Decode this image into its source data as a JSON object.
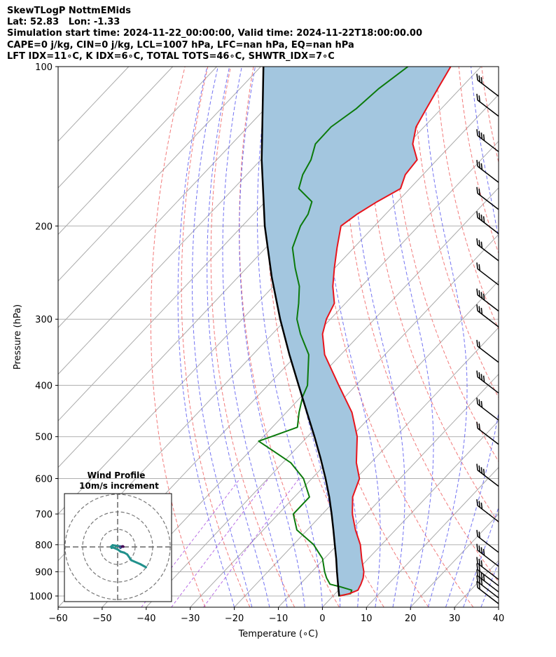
{
  "header": {
    "line1": "SkewTLogP NottmEMids",
    "line2": "Lat: 52.83   Lon: -1.33",
    "line3": "Simulation start time: 2024-11-22_00:00:00, Valid time: 2024-11-22T18:00:00.00",
    "line4": "CAPE=0 j/kg, CIN=0 j/kg, LCL=1007 hPa, LFC=nan hPa, EQ=nan hPa",
    "line5": "LFT IDX=11∘C, K IDX=6∘C, TOTAL TOTS=46∘C, SHWTR_IDX=7∘C"
  },
  "chart_data": [
    {
      "type": "skewt",
      "xlabel": "Temperature (∘C)",
      "ylabel": "Pressure (hPa)",
      "xlim": [
        -60,
        40
      ],
      "ylim_hPa": [
        1050,
        100
      ],
      "log_pressure": true,
      "grid": true,
      "x_ticks": [
        -60,
        -50,
        -40,
        -30,
        -20,
        -10,
        0,
        10,
        20,
        30,
        40
      ],
      "x_tick_labels": [
        "−60",
        "−50",
        "−40",
        "−30",
        "−20",
        "−10",
        "0",
        "10",
        "20",
        "30",
        "40"
      ],
      "y_ticks": [
        1000,
        900,
        800,
        700,
        600,
        500,
        400,
        300,
        200,
        100
      ],
      "y_tick_labels": [
        "1000",
        "900",
        "800",
        "700",
        "600",
        "500",
        "400",
        "300",
        "200",
        "100"
      ],
      "colors": {
        "temperature": "#e8141c",
        "dewpoint": "#0b7a0b",
        "parcel": "#000000",
        "fill": "#a3c6df",
        "dry_adiabat": "#f06464",
        "moist_adiabat": "#5a5af0",
        "isotherm": "#aaaaaa",
        "mixing_ratio": "#9b30d9"
      },
      "temperature": {
        "p": [
          1000,
          990,
          975,
          950,
          925,
          900,
          850,
          800,
          750,
          700,
          650,
          600,
          560,
          500,
          450,
          400,
          350,
          320,
          300,
          280,
          260,
          240,
          220,
          200,
          190,
          180,
          170,
          160,
          150,
          140,
          130,
          120,
          110,
          100
        ],
        "t": [
          1.5,
          3.2,
          4.4,
          3.8,
          3.0,
          1.8,
          -1.5,
          -4.8,
          -9.1,
          -13.2,
          -16.8,
          -19.2,
          -23.3,
          -28.7,
          -35.1,
          -43.9,
          -53.7,
          -58.6,
          -60.9,
          -62.5,
          -66.5,
          -70.1,
          -73.8,
          -77.6,
          -76.5,
          -74.6,
          -72.1,
          -74.0,
          -74.5,
          -78.9,
          -81.8,
          -83.4,
          -85.1,
          -86.9
        ]
      },
      "dewpoint": {
        "p": [
          1000,
          990,
          975,
          960,
          950,
          925,
          900,
          850,
          800,
          750,
          700,
          650,
          600,
          560,
          530,
          510,
          480,
          450,
          420,
          400,
          350,
          320,
          300,
          280,
          260,
          240,
          220,
          200,
          190,
          180,
          170,
          160,
          150,
          140,
          130,
          120,
          110,
          100
        ],
        "t": [
          1.2,
          3.5,
          3.0,
          -0.5,
          -3.2,
          -5.3,
          -7.1,
          -10.4,
          -15.4,
          -22.4,
          -26.6,
          -26.6,
          -31.9,
          -38.2,
          -45.2,
          -50.1,
          -44.3,
          -47.1,
          -49.7,
          -51.0,
          -57.3,
          -63.6,
          -67.6,
          -70.6,
          -74.1,
          -79.0,
          -83.9,
          -86.8,
          -87.6,
          -89.4,
          -95.2,
          -97.3,
          -98.6,
          -101.0,
          -101.1,
          -99.3,
          -98.5,
          -96.6
        ]
      },
      "parcel": {
        "p": [
          1000,
          950,
          900,
          850,
          800,
          750,
          700,
          650,
          600,
          550,
          500,
          450,
          400,
          350,
          300,
          250,
          200,
          150,
          100
        ],
        "t": [
          1.4,
          -1.4,
          -4.3,
          -7.3,
          -10.6,
          -14.1,
          -17.9,
          -22.1,
          -26.9,
          -32.3,
          -38.4,
          -45.3,
          -53.0,
          -61.7,
          -71.4,
          -82.3,
          -94.9,
          -109.8,
          -129.4
        ]
      },
      "wind_barbs_p": [
        1000,
        975,
        950,
        925,
        900,
        850,
        800,
        700,
        600,
        500,
        450,
        400,
        350,
        300,
        280,
        250,
        225,
        200,
        180,
        160,
        140,
        120,
        110
      ]
    },
    {
      "type": "hodograph",
      "title": "Wind Profile",
      "subtitle": "10m/s increment",
      "ring_step_ms": 10,
      "rings": [
        10,
        20,
        30
      ],
      "grid": true,
      "colormap": [
        "#440154",
        "#3b528b",
        "#21918c"
      ],
      "u": [
        16.2,
        12.9,
        7.8,
        5.5,
        3.8,
        1.7,
        0.1,
        -2.7,
        -3.4,
        -3.8,
        -2.9,
        1.5,
        2.8,
        2.5,
        1.6,
        1.2,
        3.0,
        2.9,
        3.3,
        3.0,
        2.7,
        2.5,
        3.2
      ],
      "v": [
        -11.6,
        -9.8,
        -7.6,
        -4.3,
        -3.3,
        -2.7,
        -1.5,
        -0.3,
        -0.6,
        0.1,
        1.0,
        0.3,
        0.3,
        0.1,
        -0.6,
        0.1,
        0.2,
        0.2,
        0.1,
        0.4,
        0.3,
        0.2,
        0.3
      ]
    }
  ]
}
